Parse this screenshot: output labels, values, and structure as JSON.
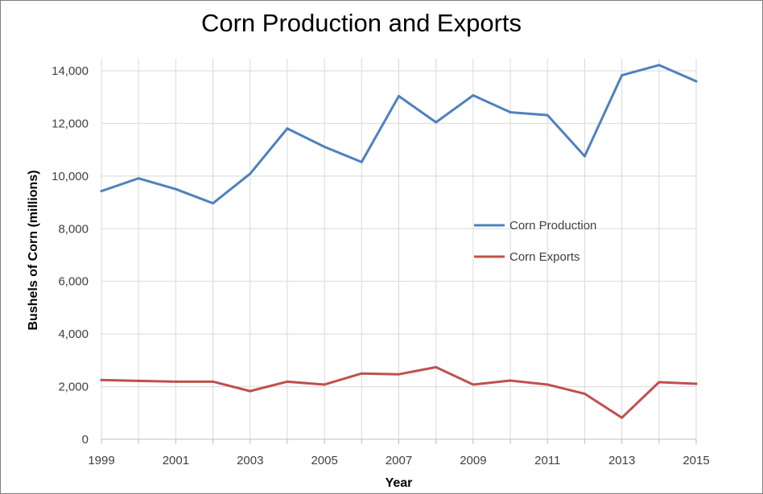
{
  "chart_data": {
    "type": "line",
    "title": "Corn Production and Exports",
    "xlabel": "Year",
    "ylabel": "Bushels of Corn (millions)",
    "x": [
      1999,
      2000,
      2001,
      2002,
      2003,
      2004,
      2005,
      2006,
      2007,
      2008,
      2009,
      2010,
      2011,
      2012,
      2013,
      2014,
      2015
    ],
    "xticks": [
      "1999",
      "2001",
      "2003",
      "2005",
      "2007",
      "2009",
      "2011",
      "2013",
      "2015"
    ],
    "ylim": [
      0,
      14000
    ],
    "yticks": [
      "0",
      "2,000",
      "4,000",
      "6,000",
      "8,000",
      "10,000",
      "12,000",
      "14,000"
    ],
    "grid": true,
    "legend_position": "right",
    "series": [
      {
        "name": "Corn Production",
        "color": "#4f81bd",
        "values": [
          9430,
          9915,
          9505,
          8967,
          10089,
          11807,
          11112,
          10535,
          13038,
          12043,
          13067,
          12425,
          12314,
          10755,
          13829,
          14216,
          13602
        ]
      },
      {
        "name": "Corn Exports",
        "color": "#c0504d",
        "values": [
          2250,
          2220,
          2190,
          2190,
          1830,
          2190,
          2080,
          2500,
          2470,
          2740,
          2080,
          2230,
          2080,
          1730,
          820,
          2170,
          2110
        ]
      }
    ]
  }
}
